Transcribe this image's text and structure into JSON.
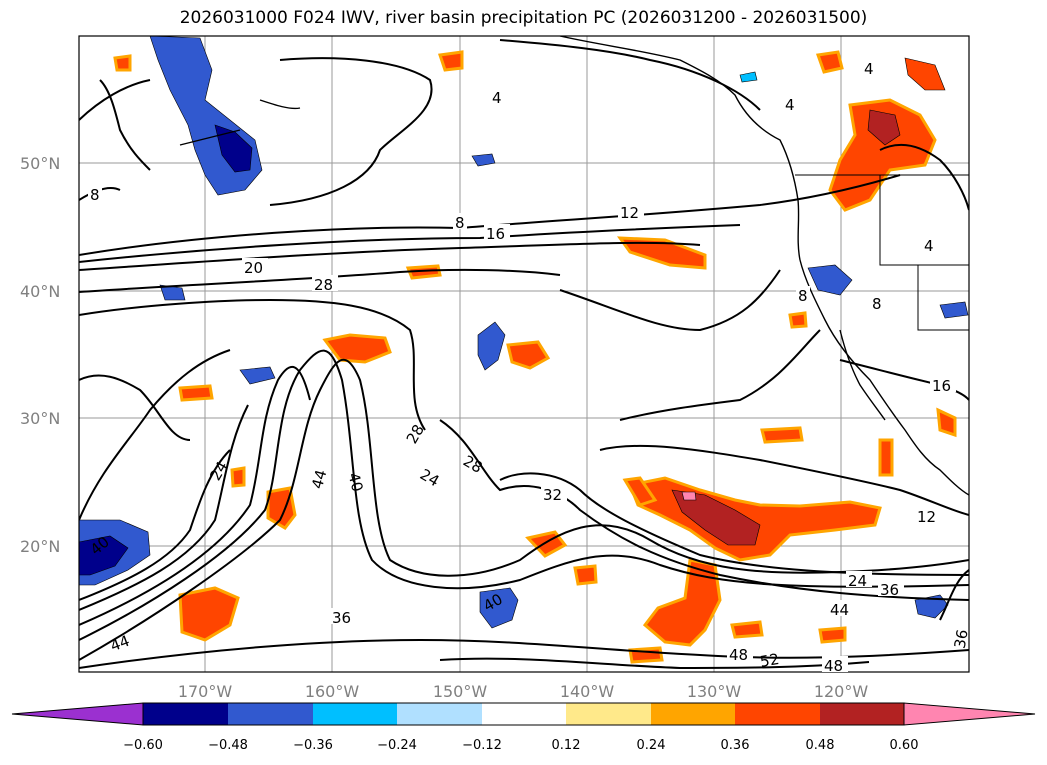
{
  "title": "2026031000 F024 IWV, river basin precipitation PC (2026031200 - 2026031500)",
  "map": {
    "lat_labels": [
      "50°N",
      "40°N",
      "30°N",
      "20°N"
    ],
    "lon_labels": [
      "170°W",
      "160°W",
      "150°W",
      "140°W",
      "130°W",
      "120°W"
    ],
    "contour_labels": [
      "4",
      "4",
      "4",
      "8",
      "8",
      "12",
      "16",
      "20",
      "28",
      "8",
      "8",
      "24",
      "44",
      "40",
      "28",
      "24",
      "28",
      "32",
      "12",
      "24",
      "36",
      "44",
      "16",
      "4",
      "36",
      "44",
      "48",
      "52",
      "48",
      "36",
      "40",
      "40"
    ]
  },
  "colorbar": {
    "colors": [
      "#9b30d0",
      "#00008b",
      "#3159cf",
      "#00bfff",
      "#b0e0ff",
      "#ffffff",
      "#ffe98a",
      "#ffa500",
      "#ff4500",
      "#b22222",
      "#ff85b0"
    ],
    "ticks": [
      "−0.60",
      "−0.48",
      "−0.36",
      "−0.24",
      "−0.12",
      "0.12",
      "0.24",
      "0.36",
      "0.48",
      "0.60"
    ]
  }
}
